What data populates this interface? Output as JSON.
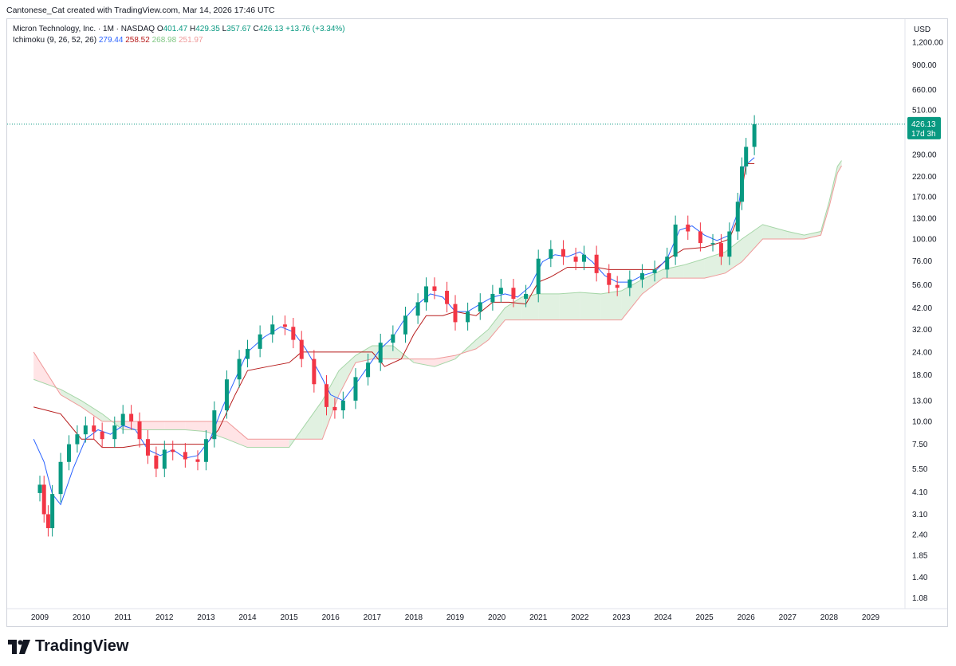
{
  "header": {
    "attribution": "Cantonese_Cat created with TradingView.com, Mar 14, 2026 17:46 UTC"
  },
  "legend": {
    "symbol": "Micron Technology, Inc. · 1M · NASDAQ",
    "o_label": "O",
    "o": "401.47",
    "h_label": "H",
    "h": "429.35",
    "l_label": "L",
    "l": "357.67",
    "c_label": "C",
    "c": "426.13",
    "change": "+13.76 (+3.34%)",
    "ichimoku_label": "Ichimoku (9, 26, 52, 26)",
    "tenkan": "279.44",
    "kijun": "258.52",
    "span_a": "268.98",
    "span_b": "251.97"
  },
  "price_axis": {
    "currency": "USD",
    "price_tag": "426.13",
    "countdown": "17d 3h",
    "ticks": [
      "1,200.00",
      "900.00",
      "660.00",
      "510.00",
      "290.00",
      "220.00",
      "170.00",
      "130.00",
      "100.00",
      "76.00",
      "56.00",
      "42.00",
      "32.00",
      "24.00",
      "18.00",
      "13.00",
      "10.00",
      "7.50",
      "5.50",
      "4.10",
      "3.10",
      "2.40",
      "1.85",
      "1.40",
      "1.08"
    ]
  },
  "time_axis": {
    "labels": [
      "2009",
      "2010",
      "2011",
      "2012",
      "2013",
      "2014",
      "2015",
      "2016",
      "2017",
      "2018",
      "2019",
      "2020",
      "2021",
      "2022",
      "2023",
      "2024",
      "2025",
      "2026",
      "2027",
      "2028",
      "2029"
    ]
  },
  "brand": {
    "name": "TradingView"
  },
  "colors": {
    "up": "#089981",
    "down": "#f23645",
    "tenkan": "#2962ff",
    "kijun": "#b71c1c",
    "cloud_green": "#c8e6c9",
    "cloud_red": "#ffcdd2",
    "last_line": "#089981"
  },
  "chart_data": {
    "type": "candlestick",
    "title": "Micron Technology, Inc. · 1M · NASDAQ",
    "scale": "log",
    "ylim": [
      1.0,
      1500
    ],
    "xlim": [
      2008.8,
      2029.5
    ],
    "last_close": 426.13,
    "series": [
      {
        "name": "MU price (monthly close, approx)",
        "x": [
          2009.0,
          2009.1,
          2009.2,
          2009.3,
          2009.5,
          2009.7,
          2009.9,
          2010.1,
          2010.3,
          2010.5,
          2010.8,
          2011.0,
          2011.2,
          2011.4,
          2011.6,
          2011.8,
          2012.0,
          2012.2,
          2012.5,
          2012.8,
          2013.0,
          2013.2,
          2013.5,
          2013.8,
          2014.0,
          2014.3,
          2014.6,
          2014.9,
          2015.1,
          2015.3,
          2015.6,
          2015.9,
          2016.1,
          2016.3,
          2016.6,
          2016.9,
          2017.2,
          2017.5,
          2017.8,
          2018.1,
          2018.3,
          2018.5,
          2018.8,
          2019.0,
          2019.3,
          2019.6,
          2019.9,
          2020.1,
          2020.4,
          2020.7,
          2021.0,
          2021.3,
          2021.6,
          2021.9,
          2022.1,
          2022.4,
          2022.7,
          2022.9,
          2023.2,
          2023.5,
          2023.8,
          2024.1,
          2024.3,
          2024.6,
          2024.9,
          2025.2,
          2025.4,
          2025.6,
          2025.8,
          2025.9,
          2026.0,
          2026.2
        ],
        "values": [
          4.5,
          3.1,
          2.6,
          4.0,
          6.0,
          7.5,
          8.5,
          9.5,
          8.8,
          8.0,
          9.5,
          11.0,
          10.0,
          8.0,
          6.5,
          5.5,
          7.0,
          6.8,
          6.2,
          6.0,
          8.0,
          11.5,
          17.0,
          22.0,
          25.0,
          30.0,
          34.0,
          33.0,
          28.0,
          22.0,
          16.0,
          12.0,
          11.5,
          13.0,
          17.5,
          21.0,
          27.0,
          30.0,
          38.0,
          45.0,
          55.0,
          52.0,
          44.0,
          35.0,
          40.0,
          45.0,
          50.0,
          54.0,
          47.0,
          50.0,
          78.0,
          88.0,
          80.0,
          75.0,
          82.0,
          65.0,
          56.0,
          54.0,
          60.0,
          65.0,
          68.0,
          80.0,
          120.0,
          110.0,
          95.0,
          95.0,
          80.0,
          110.0,
          160.0,
          250.0,
          320.0,
          426.13
        ]
      },
      {
        "name": "Tenkan (9)",
        "values_last": 279.44
      },
      {
        "name": "Kijun (26)",
        "values_last": 258.52
      },
      {
        "name": "Senkou Span A",
        "values_last": 268.98
      },
      {
        "name": "Senkou Span B",
        "values_last": 251.97
      }
    ]
  }
}
